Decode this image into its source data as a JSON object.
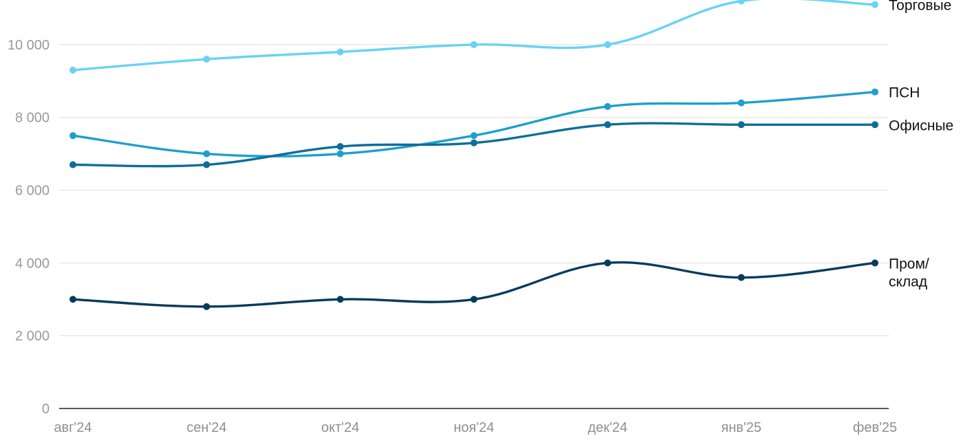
{
  "chart_data": {
    "type": "line",
    "title": "",
    "xlabel": "",
    "ylabel": "",
    "categories": [
      "авг'24",
      "сен'24",
      "окт'24",
      "ноя'24",
      "дек'24",
      "янв'25",
      "фев'25"
    ],
    "ylim": [
      0,
      11000
    ],
    "y_ticks": [
      {
        "value": 0,
        "label": "0"
      },
      {
        "value": 2000,
        "label": "2 000"
      },
      {
        "value": 4000,
        "label": "4 000"
      },
      {
        "value": 6000,
        "label": "6 000"
      },
      {
        "value": 8000,
        "label": "8 000"
      },
      {
        "value": 10000,
        "label": "10 000"
      }
    ],
    "grid": true,
    "legend": "end-of-line labels",
    "series": [
      {
        "name": "Торговые",
        "label_lines": [
          "Торговые"
        ],
        "color": "#69d2f5",
        "values": [
          9300,
          9600,
          9800,
          10000,
          10000,
          11200,
          11100
        ]
      },
      {
        "name": "ПСН",
        "label_lines": [
          "ПСН"
        ],
        "color": "#1e9fcd",
        "values": [
          7500,
          7000,
          7000,
          7500,
          8300,
          8400,
          8700
        ]
      },
      {
        "name": "Офисные",
        "label_lines": [
          "Офисные"
        ],
        "color": "#0d6e98",
        "values": [
          6700,
          6700,
          7200,
          7300,
          7800,
          7800,
          7800
        ]
      },
      {
        "name": "Пром/ склад",
        "label_lines": [
          "Пром/",
          "склад"
        ],
        "color": "#053b5c",
        "values": [
          3000,
          2800,
          3000,
          3000,
          4000,
          3600,
          4000
        ]
      }
    ]
  }
}
